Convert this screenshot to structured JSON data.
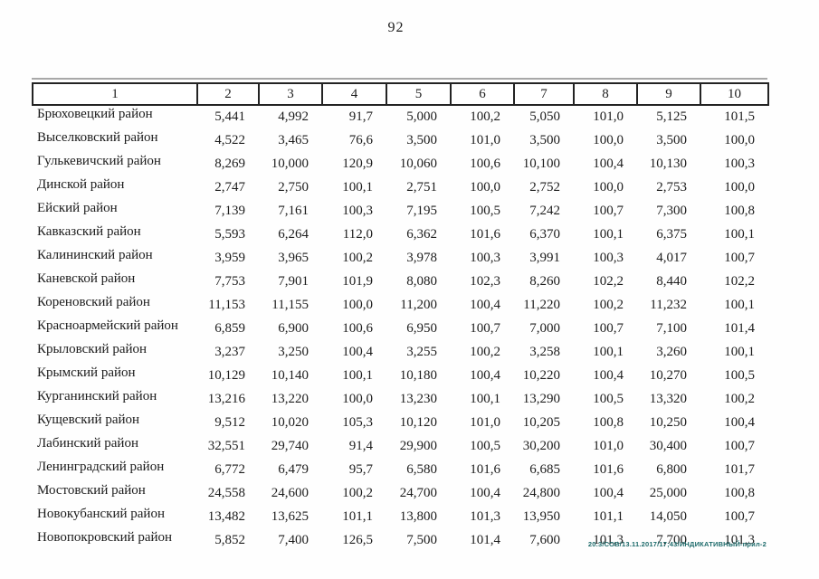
{
  "page": {
    "number": "92"
  },
  "colors": {
    "stamp": "#1d6b6b",
    "text": "#1c1c1c"
  },
  "table": {
    "header": [
      "1",
      "2",
      "3",
      "4",
      "5",
      "6",
      "7",
      "8",
      "9",
      "10"
    ],
    "rows": [
      {
        "name": "Брюховецкий район",
        "values": [
          "5,441",
          "4,992",
          "91,7",
          "5,000",
          "100,2",
          "5,050",
          "101,0",
          "5,125",
          "101,5"
        ]
      },
      {
        "name": "Выселковский район",
        "values": [
          "4,522",
          "3,465",
          "76,6",
          "3,500",
          "101,0",
          "3,500",
          "100,0",
          "3,500",
          "100,0"
        ]
      },
      {
        "name": "Гулькевичский район",
        "values": [
          "8,269",
          "10,000",
          "120,9",
          "10,060",
          "100,6",
          "10,100",
          "100,4",
          "10,130",
          "100,3"
        ]
      },
      {
        "name": "Динской район",
        "values": [
          "2,747",
          "2,750",
          "100,1",
          "2,751",
          "100,0",
          "2,752",
          "100,0",
          "2,753",
          "100,0"
        ]
      },
      {
        "name": "Ейский район",
        "values": [
          "7,139",
          "7,161",
          "100,3",
          "7,195",
          "100,5",
          "7,242",
          "100,7",
          "7,300",
          "100,8"
        ]
      },
      {
        "name": "Кавказский район",
        "values": [
          "5,593",
          "6,264",
          "112,0",
          "6,362",
          "101,6",
          "6,370",
          "100,1",
          "6,375",
          "100,1"
        ]
      },
      {
        "name": "Калининский район",
        "values": [
          "3,959",
          "3,965",
          "100,2",
          "3,978",
          "100,3",
          "3,991",
          "100,3",
          "4,017",
          "100,7"
        ]
      },
      {
        "name": "Каневской район",
        "values": [
          "7,753",
          "7,901",
          "101,9",
          "8,080",
          "102,3",
          "8,260",
          "102,2",
          "8,440",
          "102,2"
        ]
      },
      {
        "name": "Кореновский район",
        "values": [
          "11,153",
          "11,155",
          "100,0",
          "11,200",
          "100,4",
          "11,220",
          "100,2",
          "11,232",
          "100,1"
        ]
      },
      {
        "name": "Красноармейский район",
        "values": [
          "6,859",
          "6,900",
          "100,6",
          "6,950",
          "100,7",
          "7,000",
          "100,7",
          "7,100",
          "101,4"
        ]
      },
      {
        "name": "Крыловский район",
        "values": [
          "3,237",
          "3,250",
          "100,4",
          "3,255",
          "100,2",
          "3,258",
          "100,1",
          "3,260",
          "100,1"
        ]
      },
      {
        "name": "Крымский район",
        "values": [
          "10,129",
          "10,140",
          "100,1",
          "10,180",
          "100,4",
          "10,220",
          "100,4",
          "10,270",
          "100,5"
        ]
      },
      {
        "name": "Курганинский район",
        "values": [
          "13,216",
          "13,220",
          "100,0",
          "13,230",
          "100,1",
          "13,290",
          "100,5",
          "13,320",
          "100,2"
        ]
      },
      {
        "name": "Кущевский район",
        "values": [
          "9,512",
          "10,020",
          "105,3",
          "10,120",
          "101,0",
          "10,205",
          "100,8",
          "10,250",
          "100,4"
        ]
      },
      {
        "name": "Лабинский район",
        "values": [
          "32,551",
          "29,740",
          "91,4",
          "29,900",
          "100,5",
          "30,200",
          "101,0",
          "30,400",
          "100,7"
        ]
      },
      {
        "name": "Ленинградский район",
        "values": [
          "6,772",
          "6,479",
          "95,7",
          "6,580",
          "101,6",
          "6,685",
          "101,6",
          "6,800",
          "101,7"
        ]
      },
      {
        "name": "Мостовский район",
        "values": [
          "24,558",
          "24,600",
          "100,2",
          "24,700",
          "100,4",
          "24,800",
          "100,4",
          "25,000",
          "100,8"
        ]
      },
      {
        "name": "Новокубанский район",
        "values": [
          "13,482",
          "13,625",
          "101,1",
          "13,800",
          "101,3",
          "13,950",
          "101,1",
          "14,050",
          "100,7"
        ]
      },
      {
        "name": "Новопокровский район",
        "values": [
          "5,852",
          "7,400",
          "126,5",
          "7,500",
          "101,4",
          "7,600",
          "101,3",
          "7,700",
          "101,3"
        ]
      }
    ]
  },
  "footer": {
    "stamp": "20.3/СОВ/13.11.2017/17;43/ИНДИКАТИВНЫЙ-прил-2"
  }
}
